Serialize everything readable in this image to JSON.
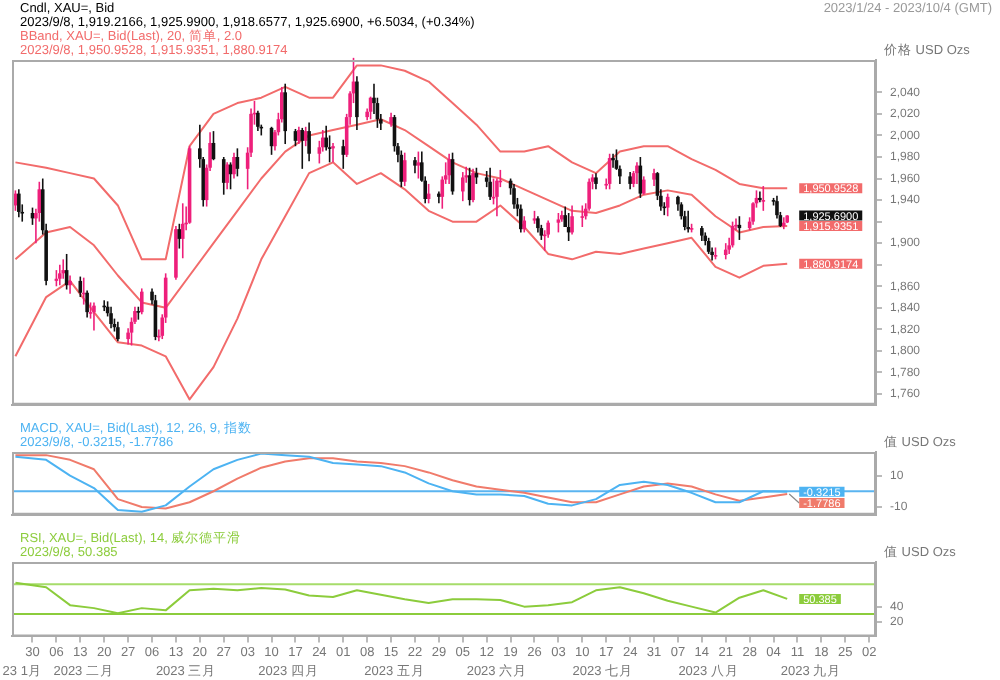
{
  "chart_data": [
    {
      "type": "candlestick",
      "title": "Cndl, XAU=, Bid",
      "subtitle": "2023/1/24 - 2023/10/4 (GMT)",
      "ylabel": "价格 USD Ozs",
      "x": [
        "2023-01-25",
        "2023-01-26",
        "2023-01-27",
        "2023-01-30",
        "2023-01-31",
        "2023-02-01",
        "2023-02-02",
        "2023-02-03",
        "2023-02-06",
        "2023-02-07",
        "2023-02-08",
        "2023-02-09",
        "2023-02-10",
        "2023-02-13",
        "2023-02-14",
        "2023-02-15",
        "2023-02-16",
        "2023-02-17",
        "2023-02-20",
        "2023-02-21",
        "2023-02-22",
        "2023-02-23",
        "2023-02-24",
        "2023-02-27",
        "2023-02-28",
        "2023-03-01",
        "2023-03-02",
        "2023-03-03",
        "2023-03-06",
        "2023-03-07",
        "2023-03-08",
        "2023-03-09",
        "2023-03-10",
        "2023-03-13",
        "2023-03-14",
        "2023-03-15",
        "2023-03-16",
        "2023-03-17",
        "2023-03-20",
        "2023-03-21",
        "2023-03-22",
        "2023-03-23",
        "2023-03-24",
        "2023-03-27",
        "2023-03-28",
        "2023-03-29",
        "2023-03-30",
        "2023-03-31",
        "2023-04-03",
        "2023-04-04",
        "2023-04-05",
        "2023-04-06",
        "2023-04-07",
        "2023-04-10",
        "2023-04-11",
        "2023-04-12",
        "2023-04-13",
        "2023-04-14",
        "2023-04-17",
        "2023-04-18",
        "2023-04-19",
        "2023-04-20",
        "2023-04-21",
        "2023-04-24",
        "2023-04-25",
        "2023-04-26",
        "2023-04-27",
        "2023-04-28",
        "2023-05-01",
        "2023-05-02",
        "2023-05-03",
        "2023-05-04",
        "2023-05-05",
        "2023-05-08",
        "2023-05-09",
        "2023-05-10",
        "2023-05-11",
        "2023-05-12",
        "2023-05-15",
        "2023-05-16",
        "2023-05-17",
        "2023-05-18",
        "2023-05-19",
        "2023-05-22",
        "2023-05-23",
        "2023-05-24",
        "2023-05-25",
        "2023-05-26",
        "2023-05-29",
        "2023-05-30",
        "2023-05-31",
        "2023-06-01",
        "2023-06-02",
        "2023-06-05",
        "2023-06-06",
        "2023-06-07",
        "2023-06-08",
        "2023-06-09",
        "2023-06-12",
        "2023-06-13",
        "2023-06-14",
        "2023-06-15",
        "2023-06-16",
        "2023-06-19",
        "2023-06-20",
        "2023-06-21",
        "2023-06-22",
        "2023-06-23",
        "2023-06-26",
        "2023-06-27",
        "2023-06-28",
        "2023-06-29",
        "2023-06-30",
        "2023-07-03",
        "2023-07-04",
        "2023-07-05",
        "2023-07-06",
        "2023-07-07",
        "2023-07-10",
        "2023-07-11",
        "2023-07-12",
        "2023-07-13",
        "2023-07-14",
        "2023-07-17",
        "2023-07-18",
        "2023-07-19",
        "2023-07-20",
        "2023-07-21",
        "2023-07-24",
        "2023-07-25",
        "2023-07-26",
        "2023-07-27",
        "2023-07-28",
        "2023-07-31",
        "2023-08-01",
        "2023-08-02",
        "2023-08-03",
        "2023-08-04",
        "2023-08-07",
        "2023-08-08",
        "2023-08-09",
        "2023-08-10",
        "2023-08-11",
        "2023-08-14",
        "2023-08-15",
        "2023-08-16",
        "2023-08-17",
        "2023-08-18",
        "2023-08-21",
        "2023-08-22",
        "2023-08-23",
        "2023-08-24",
        "2023-08-25",
        "2023-08-28",
        "2023-08-29",
        "2023-08-30",
        "2023-08-31",
        "2023-09-01",
        "2023-09-04",
        "2023-09-05",
        "2023-09-06",
        "2023-09-07",
        "2023-09-08"
      ],
      "ohlc": [
        [
          1935,
          1949,
          1930,
          1946
        ],
        [
          1946,
          1950,
          1924,
          1929
        ],
        [
          1929,
          1936,
          1920,
          1928
        ],
        [
          1928,
          1933,
          1917,
          1923
        ],
        [
          1923,
          1932,
          1900,
          1928
        ],
        [
          1928,
          1957,
          1920,
          1950
        ],
        [
          1950,
          1960,
          1908,
          1912
        ],
        [
          1912,
          1918,
          1861,
          1865
        ],
        [
          1865,
          1875,
          1860,
          1867
        ],
        [
          1867,
          1880,
          1861,
          1872
        ],
        [
          1872,
          1885,
          1867,
          1875
        ],
        [
          1875,
          1890,
          1857,
          1861
        ],
        [
          1861,
          1870,
          1853,
          1865
        ],
        [
          1865,
          1869,
          1850,
          1854
        ],
        [
          1854,
          1868,
          1843,
          1854
        ],
        [
          1854,
          1856,
          1831,
          1836
        ],
        [
          1836,
          1845,
          1830,
          1836
        ],
        [
          1836,
          1845,
          1819,
          1842
        ],
        [
          1842,
          1847,
          1837,
          1841
        ],
        [
          1841,
          1846,
          1832,
          1835
        ],
        [
          1835,
          1841,
          1821,
          1825
        ],
        [
          1825,
          1830,
          1818,
          1822
        ],
        [
          1822,
          1827,
          1809,
          1811
        ],
        [
          1811,
          1821,
          1806,
          1817
        ],
        [
          1817,
          1831,
          1805,
          1827
        ],
        [
          1827,
          1841,
          1825,
          1837
        ],
        [
          1837,
          1841,
          1829,
          1836
        ],
        [
          1836,
          1858,
          1834,
          1855
        ],
        [
          1855,
          1858,
          1843,
          1847
        ],
        [
          1847,
          1852,
          1810,
          1813
        ],
        [
          1813,
          1820,
          1809,
          1814
        ],
        [
          1814,
          1834,
          1811,
          1831
        ],
        [
          1831,
          1872,
          1826,
          1868
        ],
        [
          1868,
          1916,
          1866,
          1913
        ],
        [
          1913,
          1918,
          1895,
          1904
        ],
        [
          1904,
          1937,
          1886,
          1918
        ],
        [
          1918,
          1934,
          1912,
          1919
        ],
        [
          1919,
          1990,
          1918,
          1988
        ],
        [
          1988,
          2010,
          1970,
          1978
        ],
        [
          1978,
          1980,
          1934,
          1940
        ],
        [
          1940,
          1973,
          1934,
          1970
        ],
        [
          1970,
          2003,
          1967,
          1993
        ],
        [
          1993,
          2004,
          1977,
          1978
        ],
        [
          1978,
          1980,
          1945,
          1956
        ],
        [
          1956,
          1975,
          1950,
          1973
        ],
        [
          1973,
          1975,
          1950,
          1964
        ],
        [
          1964,
          1984,
          1960,
          1980
        ],
        [
          1980,
          1988,
          1962,
          1969
        ],
        [
          1969,
          1989,
          1950,
          1984
        ],
        [
          1984,
          2025,
          1980,
          2020
        ],
        [
          2020,
          2032,
          2010,
          2021
        ],
        [
          2021,
          2023,
          2004,
          2008
        ],
        [
          2008,
          2010,
          2000,
          2007
        ],
        [
          2007,
          2008,
          1982,
          1990
        ],
        [
          1990,
          2005,
          1986,
          2003
        ],
        [
          2003,
          2021,
          2000,
          2015
        ],
        [
          2015,
          2045,
          2012,
          2040
        ],
        [
          2040,
          2048,
          1992,
          2004
        ],
        [
          2004,
          2006,
          1990,
          1995
        ],
        [
          1995,
          2008,
          1992,
          2005
        ],
        [
          2005,
          2007,
          1969,
          1995
        ],
        [
          1995,
          2008,
          1990,
          2004
        ],
        [
          2004,
          2012,
          1976,
          1983
        ],
        [
          1983,
          1995,
          1974,
          1989
        ],
        [
          1989,
          2005,
          1985,
          1998
        ],
        [
          1998,
          2009,
          1986,
          1989
        ],
        [
          1989,
          2000,
          1975,
          1988
        ],
        [
          1988,
          1993,
          1975,
          1990
        ],
        [
          1990,
          1996,
          1969,
          1982
        ],
        [
          1982,
          2020,
          1980,
          2017
        ],
        [
          2017,
          2041,
          2010,
          2039
        ],
        [
          2039,
          2072,
          2030,
          2050
        ],
        [
          2050,
          2055,
          2005,
          2017
        ],
        [
          2017,
          2025,
          2014,
          2022
        ],
        [
          2022,
          2036,
          2015,
          2035
        ],
        [
          2035,
          2048,
          2020,
          2030
        ],
        [
          2030,
          2035,
          2007,
          2015
        ],
        [
          2015,
          2020,
          2005,
          2011
        ],
        [
          2011,
          2021,
          2008,
          2017
        ],
        [
          2017,
          2019,
          1985,
          1990
        ],
        [
          1990,
          1993,
          1975,
          1982
        ],
        [
          1982,
          1986,
          1952,
          1957
        ],
        [
          1957,
          1984,
          1953,
          1977
        ],
        [
          1977,
          1980,
          1965,
          1972
        ],
        [
          1972,
          1985,
          1960,
          1975
        ],
        [
          1975,
          1985,
          1957,
          1958
        ],
        [
          1958,
          1962,
          1937,
          1941
        ],
        [
          1941,
          1955,
          1937,
          1946
        ],
        [
          1946,
          1948,
          1937,
          1943
        ],
        [
          1943,
          1962,
          1932,
          1959
        ],
        [
          1959,
          1975,
          1955,
          1963
        ],
        [
          1963,
          1983,
          1955,
          1978
        ],
        [
          1978,
          1984,
          1945,
          1948
        ],
        [
          1948,
          1966,
          1939,
          1961
        ],
        [
          1961,
          1971,
          1956,
          1963
        ],
        [
          1963,
          1970,
          1935,
          1940
        ],
        [
          1940,
          1969,
          1938,
          1965
        ],
        [
          1965,
          1970,
          1955,
          1961
        ],
        [
          1961,
          1967,
          1952,
          1957
        ],
        [
          1957,
          1970,
          1940,
          1943
        ],
        [
          1943,
          1960,
          1936,
          1943
        ],
        [
          1943,
          1960,
          1925,
          1958
        ],
        [
          1958,
          1968,
          1952,
          1958
        ],
        [
          1958,
          1960,
          1945,
          1951
        ],
        [
          1951,
          1955,
          1932,
          1936
        ],
        [
          1936,
          1942,
          1925,
          1932
        ],
        [
          1932,
          1936,
          1910,
          1913
        ],
        [
          1913,
          1925,
          1910,
          1921
        ],
        [
          1921,
          1930,
          1918,
          1923
        ],
        [
          1923,
          1925,
          1910,
          1914
        ],
        [
          1914,
          1917,
          1903,
          1907
        ],
        [
          1907,
          1912,
          1893,
          1908
        ],
        [
          1908,
          1921,
          1905,
          1919
        ],
        [
          1919,
          1928,
          1910,
          1922
        ],
        [
          1922,
          1930,
          1920,
          1926
        ],
        [
          1926,
          1934,
          1915,
          1915
        ],
        [
          1915,
          1928,
          1902,
          1910
        ],
        [
          1910,
          1935,
          1908,
          1925
        ],
        [
          1925,
          1935,
          1915,
          1925
        ],
        [
          1925,
          1937,
          1922,
          1932
        ],
        [
          1932,
          1960,
          1930,
          1957
        ],
        [
          1957,
          1964,
          1950,
          1961
        ],
        [
          1961,
          1965,
          1950,
          1955
        ],
        [
          1955,
          1960,
          1950,
          1955
        ],
        [
          1955,
          1983,
          1950,
          1979
        ],
        [
          1979,
          1983,
          1970,
          1977
        ],
        [
          1977,
          1987,
          1968,
          1969
        ],
        [
          1969,
          1972,
          1955,
          1962
        ],
        [
          1962,
          1966,
          1950,
          1955
        ],
        [
          1955,
          1967,
          1952,
          1965
        ],
        [
          1965,
          1975,
          1955,
          1972
        ],
        [
          1972,
          1980,
          1942,
          1946
        ],
        [
          1946,
          1962,
          1945,
          1959
        ],
        [
          1959,
          1969,
          1953,
          1965
        ],
        [
          1965,
          1966,
          1940,
          1944
        ],
        [
          1944,
          1950,
          1930,
          1934
        ],
        [
          1934,
          1938,
          1926,
          1933
        ],
        [
          1933,
          1946,
          1925,
          1943
        ],
        [
          1943,
          1944,
          1930,
          1936
        ],
        [
          1936,
          1938,
          1922,
          1925
        ],
        [
          1925,
          1930,
          1912,
          1915
        ],
        [
          1915,
          1930,
          1910,
          1913
        ],
        [
          1913,
          1918,
          1910,
          1914
        ],
        [
          1914,
          1916,
          1902,
          1907
        ],
        [
          1907,
          1910,
          1898,
          1902
        ],
        [
          1902,
          1905,
          1890,
          1892
        ],
        [
          1892,
          1896,
          1884,
          1889
        ],
        [
          1889,
          1896,
          1885,
          1889
        ],
        [
          1889,
          1900,
          1885,
          1894
        ],
        [
          1894,
          1905,
          1890,
          1898
        ],
        [
          1898,
          1920,
          1896,
          1916
        ],
        [
          1916,
          1923,
          1912,
          1917
        ],
        [
          1917,
          1925,
          1903,
          1914
        ],
        [
          1914,
          1924,
          1912,
          1920
        ],
        [
          1920,
          1938,
          1917,
          1937
        ],
        [
          1937,
          1949,
          1933,
          1942
        ],
        [
          1942,
          1948,
          1938,
          1940
        ],
        [
          1940,
          1953,
          1930,
          1940
        ],
        [
          1940,
          1942,
          1935,
          1939
        ],
        [
          1939,
          1944,
          1923,
          1926
        ],
        [
          1926,
          1929,
          1915,
          1916
        ],
        [
          1916,
          1924,
          1913,
          1919
        ],
        [
          1919.2166,
          1925.99,
          1918.6577,
          1925.69
        ]
      ],
      "colors": [
        "#ee1f7b",
        "#111111",
        "#111111",
        "#111111",
        "#ee1f7b",
        "#ee1f7b",
        "#111111",
        "#111111",
        "#ee1f7b",
        "#ee1f7b",
        "#ee1f7b",
        "#111111",
        "#ee1f7b",
        "#111111",
        "#ee1f7b",
        "#111111",
        "#ee1f7b",
        "#ee1f7b",
        "#111111",
        "#111111",
        "#111111",
        "#111111",
        "#111111",
        "#ee1f7b",
        "#ee1f7b",
        "#ee1f7b",
        "#111111",
        "#ee1f7b",
        "#111111",
        "#111111",
        "#ee1f7b",
        "#ee1f7b",
        "#ee1f7b",
        "#ee1f7b",
        "#111111",
        "#ee1f7b",
        "#ee1f7b",
        "#ee1f7b",
        "#111111",
        "#111111",
        "#ee1f7b",
        "#ee1f7b",
        "#111111",
        "#111111",
        "#ee1f7b",
        "#111111",
        "#ee1f7b",
        "#111111",
        "#ee1f7b",
        "#ee1f7b",
        "#ee1f7b",
        "#111111",
        "#111111",
        "#111111",
        "#ee1f7b",
        "#ee1f7b",
        "#ee1f7b",
        "#111111",
        "#111111",
        "#ee1f7b",
        "#111111",
        "#ee1f7b",
        "#111111",
        "#ee1f7b",
        "#ee1f7b",
        "#111111",
        "#111111",
        "#ee1f7b",
        "#111111",
        "#ee1f7b",
        "#ee1f7b",
        "#ee1f7b",
        "#111111",
        "#ee1f7b",
        "#ee1f7b",
        "#111111",
        "#111111",
        "#111111",
        "#ee1f7b",
        "#111111",
        "#111111",
        "#111111",
        "#ee1f7b",
        "#111111",
        "#ee1f7b",
        "#111111",
        "#111111",
        "#ee1f7b",
        "#111111",
        "#ee1f7b",
        "#ee1f7b",
        "#ee1f7b",
        "#111111",
        "#ee1f7b",
        "#ee1f7b",
        "#111111",
        "#ee1f7b",
        "#111111",
        "#111111",
        "#111111",
        "#ee1f7b",
        "#ee1f7b",
        "#ee1f7b",
        "#111111",
        "#111111",
        "#111111",
        "#111111",
        "#ee1f7b",
        "#ee1f7b",
        "#111111",
        "#111111",
        "#ee1f7b",
        "#ee1f7b",
        "#ee1f7b",
        "#ee1f7b",
        "#111111",
        "#111111",
        "#ee1f7b",
        "#ee1f7b",
        "#ee1f7b",
        "#ee1f7b",
        "#ee1f7b",
        "#111111",
        "#ee1f7b",
        "#ee1f7b",
        "#111111",
        "#111111",
        "#111111",
        "#111111",
        "#ee1f7b",
        "#ee1f7b",
        "#111111",
        "#ee1f7b",
        "#ee1f7b",
        "#111111",
        "#111111",
        "#111111",
        "#ee1f7b",
        "#111111",
        "#111111",
        "#111111",
        "#111111",
        "#ee1f7b",
        "#111111",
        "#111111",
        "#111111",
        "#111111",
        "#ee1f7b",
        "#ee1f7b",
        "#ee1f7b",
        "#ee1f7b",
        "#ee1f7b",
        "#111111",
        "#ee1f7b",
        "#ee1f7b",
        "#ee1f7b",
        "#111111",
        "#ee1f7b",
        "#111111",
        "#111111",
        "#111111",
        "#ee1f7b",
        "#ee1f7b"
      ],
      "series": [
        {
          "type": "line",
          "color": "#f26b6b",
          "x": [
            "2023-01-25",
            "2023-02-03",
            "2023-02-10",
            "2023-02-17",
            "2023-02-24",
            "2023-03-03",
            "2023-03-10",
            "2023-03-17",
            "2023-03-24",
            "2023-03-31",
            "2023-04-07",
            "2023-04-14",
            "2023-04-21",
            "2023-04-28",
            "2023-05-05",
            "2023-05-12",
            "2023-05-19",
            "2023-05-26",
            "2023-06-02",
            "2023-06-09",
            "2023-06-16",
            "2023-06-23",
            "2023-06-30",
            "2023-07-07",
            "2023-07-14",
            "2023-07-21",
            "2023-07-28",
            "2023-08-04",
            "2023-08-11",
            "2023-08-18",
            "2023-08-25",
            "2023-09-01",
            "2023-09-08"
          ],
          "values": [
            1975,
            1970,
            1965,
            1960,
            1935,
            1885,
            1885,
            1990,
            2020,
            2030,
            2035,
            2045,
            2035,
            2035,
            2065,
            2065,
            2060,
            2050,
            2030,
            2010,
            1985,
            1985,
            1990,
            1975,
            1965,
            1985,
            1990,
            1990,
            1978,
            1968,
            1955,
            1951,
            1950.9528
          ]
        },
        {
          "type": "line",
          "color": "#f26b6b",
          "x": [
            "2023-01-25",
            "2023-02-03",
            "2023-02-10",
            "2023-02-17",
            "2023-02-24",
            "2023-03-03",
            "2023-03-10",
            "2023-03-17",
            "2023-03-24",
            "2023-03-31",
            "2023-04-07",
            "2023-04-14",
            "2023-04-21",
            "2023-04-28",
            "2023-05-05",
            "2023-05-12",
            "2023-05-19",
            "2023-05-26",
            "2023-06-02",
            "2023-06-09",
            "2023-06-16",
            "2023-06-23",
            "2023-06-30",
            "2023-07-07",
            "2023-07-14",
            "2023-07-21",
            "2023-07-28",
            "2023-08-04",
            "2023-08-11",
            "2023-08-18",
            "2023-08-25",
            "2023-09-01",
            "2023-09-08"
          ],
          "values": [
            1885,
            1910,
            1915,
            1898,
            1870,
            1845,
            1840,
            1870,
            1900,
            1930,
            1960,
            1985,
            2000,
            2005,
            2010,
            2015,
            2005,
            1990,
            1975,
            1965,
            1960,
            1950,
            1940,
            1930,
            1928,
            1935,
            1945,
            1949,
            1945,
            1925,
            1910,
            1915,
            1915.9351
          ]
        },
        {
          "type": "line",
          "color": "#f26b6b",
          "x": [
            "2023-01-25",
            "2023-02-03",
            "2023-02-10",
            "2023-02-17",
            "2023-02-24",
            "2023-03-03",
            "2023-03-10",
            "2023-03-17",
            "2023-03-24",
            "2023-03-31",
            "2023-04-07",
            "2023-04-14",
            "2023-04-21",
            "2023-04-28",
            "2023-05-05",
            "2023-05-12",
            "2023-05-19",
            "2023-05-26",
            "2023-06-02",
            "2023-06-09",
            "2023-06-16",
            "2023-06-23",
            "2023-06-30",
            "2023-07-07",
            "2023-07-14",
            "2023-07-21",
            "2023-07-28",
            "2023-08-04",
            "2023-08-11",
            "2023-08-18",
            "2023-08-25",
            "2023-09-01",
            "2023-09-08"
          ],
          "values": [
            1795,
            1850,
            1865,
            1836,
            1808,
            1805,
            1795,
            1755,
            1785,
            1830,
            1885,
            1925,
            1965,
            1975,
            1955,
            1965,
            1950,
            1930,
            1920,
            1920,
            1935,
            1915,
            1890,
            1885,
            1892,
            1890,
            1895,
            1900,
            1905,
            1878,
            1868,
            1879,
            1880.9174
          ]
        }
      ],
      "xlim": [
        "2023-01-24",
        "2023-10-04"
      ],
      "ylim": [
        1750,
        2070
      ],
      "yticks": [
        {
          "value": 1760,
          "label": "1,760"
        },
        {
          "value": 1780,
          "label": "1,780"
        },
        {
          "value": 1800,
          "label": "1,800"
        },
        {
          "value": 1820,
          "label": "1,820"
        },
        {
          "value": 1840,
          "label": "1,840"
        },
        {
          "value": 1860,
          "label": "1,860"
        },
        {
          "value": 1880,
          "label": null
        },
        {
          "value": 1900,
          "label": "1,900"
        },
        {
          "value": 1920,
          "label": null
        },
        {
          "value": 1940,
          "label": "1,940"
        },
        {
          "value": 1960,
          "label": "1,960"
        },
        {
          "value": 1980,
          "label": "1,980"
        },
        {
          "value": 2000,
          "label": "2,000"
        },
        {
          "value": 2020,
          "label": "2,020"
        },
        {
          "value": 2040,
          "label": "2,040"
        }
      ],
      "tick_labels": "y",
      "annotations": [
        "2023/9/8, 1,919.2166, 1,925.9900, 1,918.6577, 1,925.6900, +6.5034, (+0.34%)",
        "BBand, XAU=, Bid(Last), 20, 简单, 2.0",
        "2023/9/8, 1,950.9528, 1,915.9351, 1,880.9174",
        {
          "text": "1,950.9528",
          "x": "2023-09-08",
          "y": 1950.9528
        },
        {
          "text": "1,925.6900",
          "x": "2023-09-08",
          "y": 1925.69
        },
        {
          "text": "1,915.9351",
          "x": "2023-09-08",
          "y": 1915.9351
        },
        {
          "text": "1,880.9174",
          "x": "2023-09-08",
          "y": 1880.9174
        }
      ]
    },
    {
      "type": "line",
      "title": "MACD, XAU=, Bid(Last), 12, 26, 9, 指数",
      "ylabel": "值 USD Ozs",
      "series": [
        {
          "type": "line",
          "color": "#4db3f2",
          "x": [
            "2023-01-25",
            "2023-02-03",
            "2023-02-10",
            "2023-02-17",
            "2023-02-24",
            "2023-03-03",
            "2023-03-10",
            "2023-03-17",
            "2023-03-24",
            "2023-03-31",
            "2023-04-07",
            "2023-04-14",
            "2023-04-21",
            "2023-04-28",
            "2023-05-05",
            "2023-05-12",
            "2023-05-19",
            "2023-05-26",
            "2023-06-02",
            "2023-06-09",
            "2023-06-16",
            "2023-06-23",
            "2023-06-30",
            "2023-07-07",
            "2023-07-14",
            "2023-07-21",
            "2023-07-28",
            "2023-08-04",
            "2023-08-11",
            "2023-08-18",
            "2023-08-25",
            "2023-09-01",
            "2023-09-08"
          ],
          "values": [
            22,
            20,
            10,
            2,
            -12,
            -13,
            -9,
            3,
            14,
            20,
            24,
            23,
            22,
            18,
            17,
            16,
            12,
            5,
            0,
            -2,
            -2,
            -3,
            -8,
            -9,
            -5,
            4,
            6,
            4,
            -1,
            -7,
            -7,
            0,
            -0.3215
          ]
        },
        {
          "type": "line",
          "color": "#f07b6b",
          "x": [
            "2023-01-25",
            "2023-02-03",
            "2023-02-10",
            "2023-02-17",
            "2023-02-24",
            "2023-03-03",
            "2023-03-10",
            "2023-03-17",
            "2023-03-24",
            "2023-03-31",
            "2023-04-07",
            "2023-04-14",
            "2023-04-21",
            "2023-04-28",
            "2023-05-05",
            "2023-05-12",
            "2023-05-19",
            "2023-05-26",
            "2023-06-02",
            "2023-06-09",
            "2023-06-16",
            "2023-06-23",
            "2023-06-30",
            "2023-07-07",
            "2023-07-14",
            "2023-07-21",
            "2023-07-28",
            "2023-08-04",
            "2023-08-11",
            "2023-08-18",
            "2023-08-25",
            "2023-09-01",
            "2023-09-08"
          ],
          "values": [
            23,
            23,
            20,
            14,
            -5,
            -10,
            -11,
            -7,
            0,
            8,
            15,
            19,
            21,
            21,
            19,
            18,
            16,
            12,
            7,
            3,
            1,
            -1,
            -4,
            -7,
            -7,
            -2,
            3,
            5,
            3,
            -2,
            -6,
            -4,
            -1.7786
          ]
        }
      ],
      "xlim": [
        "2023-01-24",
        "2023-10-04"
      ],
      "ylim": [
        -15,
        25
      ],
      "yticks": [
        -10,
        10
      ],
      "tick_labels": "y",
      "ref_lines": [
        {
          "axis": "y",
          "value": 0,
          "color": "#5ab4f0"
        }
      ],
      "annotations": [
        "2023/9/8, -0.3215, -1.7786",
        {
          "text": "-0.3215",
          "x": "2023-09-08",
          "y": -0.3215
        },
        {
          "text": "-1.7786",
          "x": "2023-09-08",
          "y": -1.7786
        }
      ]
    },
    {
      "type": "line",
      "title": "RSI, XAU=, Bid(Last), 14, 威尔德平滑",
      "ylabel": "值 USD Ozs",
      "series": [
        {
          "type": "line",
          "color": "#8ccc3c",
          "x": [
            "2023-01-25",
            "2023-02-03",
            "2023-02-10",
            "2023-02-17",
            "2023-02-24",
            "2023-03-03",
            "2023-03-10",
            "2023-03-17",
            "2023-03-24",
            "2023-03-31",
            "2023-04-07",
            "2023-04-14",
            "2023-04-21",
            "2023-04-28",
            "2023-05-05",
            "2023-05-12",
            "2023-05-19",
            "2023-05-26",
            "2023-06-02",
            "2023-06-09",
            "2023-06-16",
            "2023-06-23",
            "2023-06-30",
            "2023-07-07",
            "2023-07-14",
            "2023-07-21",
            "2023-07-28",
            "2023-08-04",
            "2023-08-11",
            "2023-08-18",
            "2023-08-25",
            "2023-09-01",
            "2023-09-08"
          ],
          "values": [
            72,
            66,
            42,
            38,
            31,
            38,
            35,
            62,
            64,
            62,
            65,
            63,
            55,
            53,
            62,
            56,
            50,
            45,
            50,
            50,
            49,
            40,
            42,
            46,
            62,
            66,
            58,
            48,
            40,
            32,
            52,
            62,
            50.385
          ]
        }
      ],
      "xlim": [
        "2023-01-24",
        "2023-10-04"
      ],
      "xticks": [
        {
          "value": "2023-01-30",
          "label": "30"
        },
        {
          "value": "2023-02-06",
          "label": "06"
        },
        {
          "value": "2023-02-13",
          "label": "13"
        },
        {
          "value": "2023-02-20",
          "label": "20"
        },
        {
          "value": "2023-02-27",
          "label": "27"
        },
        {
          "value": "2023-03-06",
          "label": "06"
        },
        {
          "value": "2023-03-13",
          "label": "13"
        },
        {
          "value": "2023-03-20",
          "label": "20"
        },
        {
          "value": "2023-03-27",
          "label": "27"
        },
        {
          "value": "2023-04-03",
          "label": "03"
        },
        {
          "value": "2023-04-10",
          "label": "10"
        },
        {
          "value": "2023-04-17",
          "label": "17"
        },
        {
          "value": "2023-04-24",
          "label": "24"
        },
        {
          "value": "2023-05-01",
          "label": "01"
        },
        {
          "value": "2023-05-08",
          "label": "08"
        },
        {
          "value": "2023-05-15",
          "label": "15"
        },
        {
          "value": "2023-05-22",
          "label": "22"
        },
        {
          "value": "2023-05-29",
          "label": "29"
        },
        {
          "value": "2023-06-05",
          "label": "05"
        },
        {
          "value": "2023-06-12",
          "label": "12"
        },
        {
          "value": "2023-06-19",
          "label": "19"
        },
        {
          "value": "2023-06-26",
          "label": "26"
        },
        {
          "value": "2023-07-03",
          "label": "03"
        },
        {
          "value": "2023-07-10",
          "label": "10"
        },
        {
          "value": "2023-07-17",
          "label": "17"
        },
        {
          "value": "2023-07-24",
          "label": "24"
        },
        {
          "value": "2023-07-31",
          "label": "31"
        },
        {
          "value": "2023-08-07",
          "label": "07"
        },
        {
          "value": "2023-08-14",
          "label": "14"
        },
        {
          "value": "2023-08-21",
          "label": "21"
        },
        {
          "value": "2023-08-28",
          "label": "28"
        },
        {
          "value": "2023-09-04",
          "label": "04"
        },
        {
          "value": "2023-09-11",
          "label": "11"
        },
        {
          "value": "2023-09-18",
          "label": "18"
        },
        {
          "value": "2023-09-25",
          "label": "25"
        },
        {
          "value": "2023-10-02",
          "label": "02"
        }
      ],
      "x2lim": [
        "2023-01-24",
        "2023-10-04"
      ],
      "x2ticks": [
        {
          "value": "2023-01-27",
          "label": "23 1月"
        },
        {
          "value": "2023-02-14",
          "label": "2023 二月"
        },
        {
          "value": "2023-03-16",
          "label": "2023 三月"
        },
        {
          "value": "2023-04-15",
          "label": "2023 四月"
        },
        {
          "value": "2023-05-16",
          "label": "2023 五月"
        },
        {
          "value": "2023-06-15",
          "label": "2023 六月"
        },
        {
          "value": "2023-07-16",
          "label": "2023 七月"
        },
        {
          "value": "2023-08-16",
          "label": "2023 八月"
        },
        {
          "value": "2023-09-15",
          "label": "2023 九月"
        }
      ],
      "ylim": [
        0,
        100
      ],
      "yticks": [
        20,
        40
      ],
      "ref_lines": [
        {
          "axis": "y",
          "value": 70,
          "color": "#a6dc6a"
        },
        {
          "axis": "y",
          "value": 30,
          "color": "#8ccc3c"
        }
      ],
      "annotations": [
        "2023/9/8, 50.385",
        {
          "text": "50.385",
          "x": "2023-09-08",
          "y": 50.385
        }
      ]
    }
  ]
}
